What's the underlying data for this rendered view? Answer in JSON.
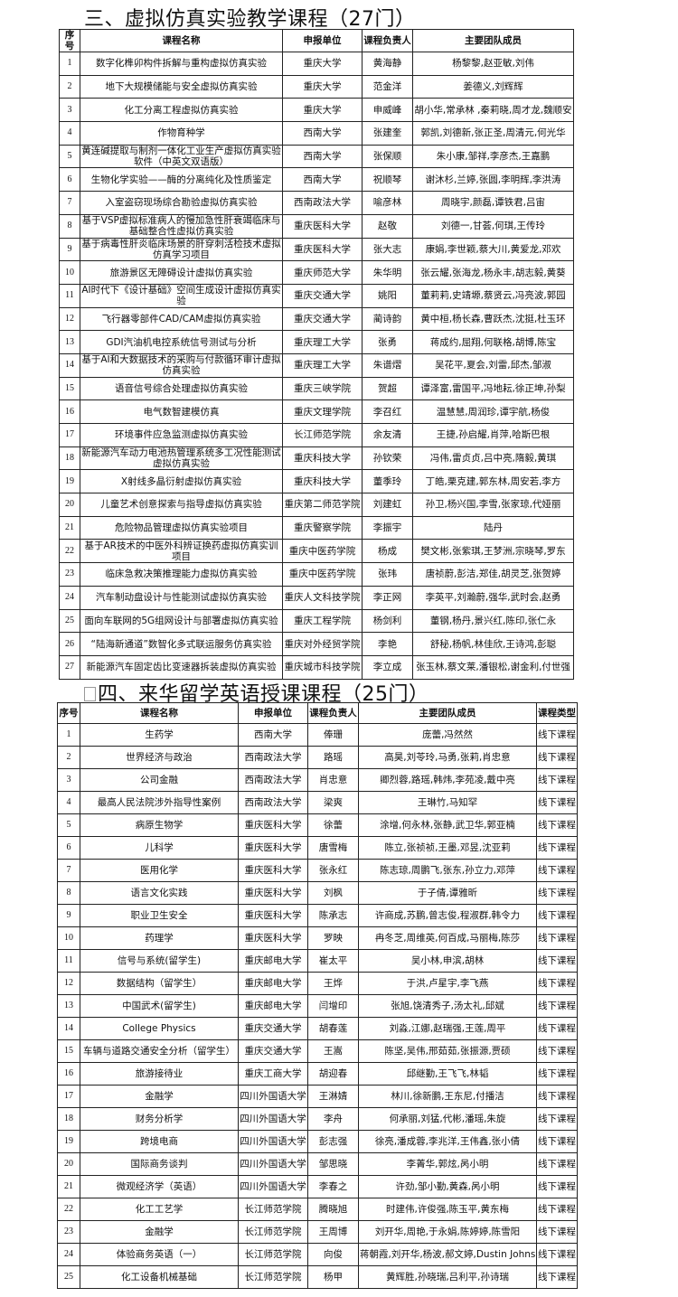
{
  "section3": {
    "title": "三、虚拟仿真实验教学课程（27门）",
    "headers": [
      "序号",
      "课程名称",
      "申报单位",
      "课程负责人",
      "主要团队成员"
    ],
    "rows": [
      [
        "1",
        "数字化榫卯构件拆解与重构虚拟仿真实验",
        "重庆大学",
        "黄海静",
        "杨黎黎,赵亚敏,刘伟"
      ],
      [
        "2",
        "地下大规模储能与安全虚拟仿真实验",
        "重庆大学",
        "范金洋",
        "姜德义,刘辉辉"
      ],
      [
        "3",
        "化工分离工程虚拟仿真实验",
        "重庆大学",
        "申威峰",
        "胡小华,常承林 ,秦莉晓,周才龙,魏顺安"
      ],
      [
        "4",
        "作物育种学",
        "西南大学",
        "张建奎",
        "郭凯,刘德新,张正圣,周清元,何光华"
      ],
      [
        "5",
        "黄连碱提取与制剂一体化工业生产虚拟仿真实验软件（中英文双语版）",
        "西南大学",
        "张保顺",
        "朱小康,邹祥,李彦杰,王嘉鹏"
      ],
      [
        "6",
        "生物化学实验——酶的分离纯化及性质鉴定",
        "西南大学",
        "祝顺琴",
        "谢沐杉,兰婷,张圆,李明辉,李洪涛"
      ],
      [
        "7",
        "入室盗窃现场综合勘验虚拟仿真实验",
        "西南政法大学",
        "喻彦林",
        "周晓宇,颜磊,谭铁君,吕宙"
      ],
      [
        "8",
        "基于VSP虚拟标准病人的慢加急性肝衰竭临床与基础整合性虚拟仿真实验",
        "重庆医科大学",
        "赵敬",
        "刘德一,甘荟,何琪,王传玲"
      ],
      [
        "9",
        "基于病毒性肝炎临床场景的肝穿刺活检技术虚拟仿真学习项目",
        "重庆医科大学",
        "张大志",
        "康娟,李世颖,蔡大川,黄爱龙,邓欢"
      ],
      [
        "10",
        "旅游景区无障碍设计虚拟仿真实验",
        "重庆师范大学",
        "朱华明",
        "张云耀,张海龙,杨永丰,胡志毅,黄葵"
      ],
      [
        "11",
        "AI时代下《设计基础》空间生成设计虚拟仿真实验",
        "重庆交通大学",
        "姚阳",
        "董莉莉,史靖塬,蔡贤云,冯亮波,郭园"
      ],
      [
        "12",
        "飞行器零部件CAD/CAM虚拟仿真实验",
        "重庆交通大学",
        "蔺诗韵",
        "黄中桓,杨长森,曹跃杰,沈挺,杜玉环"
      ],
      [
        "13",
        "GDI汽油机电控系统信号测试与分析",
        "重庆理工大学",
        "张勇",
        "蒋成约,屈翔,何联格,胡博,陈宝"
      ],
      [
        "14",
        "基于AI和大数据技术的采购与付款循环审计虚拟仿真实验",
        "重庆理工大学",
        "朱谱熠",
        "吴花平,夏会,刘雷,邱杰,邹淑"
      ],
      [
        "15",
        "语音信号综合处理虚拟仿真实验",
        "重庆三峡学院",
        "贺超",
        "谭泽富,雷国平,冯地耘,徐正坤,孙梨"
      ],
      [
        "16",
        "电气数智建模仿真",
        "重庆文理学院",
        "李召红",
        "温慧慧,周润珍,谭宇航,杨俊"
      ],
      [
        "17",
        "环境事件应急监测虚拟仿真实验",
        "长江师范学院",
        "余友清",
        "王捷,孙启耀,肖萍,哈斯巴根"
      ],
      [
        "18",
        "新能源汽车动力电池热管理系统多工况性能测试虚拟仿真实验",
        "重庆科技大学",
        "孙钦荣",
        "冯伟,雷贞贞,吕中亮,隋毅,黄琪"
      ],
      [
        "19",
        "X射线多晶衍射虚拟仿真实验",
        "重庆科技大学",
        "董季玲",
        "丁皓,栗克建,郭东林,周安若,李方"
      ],
      [
        "20",
        "儿童艺术创意探索与指导虚拟仿真实验",
        "重庆第二师范学院",
        "刘建虹",
        "孙卫,杨兴国,李雪,张家琼,代娅丽"
      ],
      [
        "21",
        "危险物品管理虚拟仿真实验项目",
        "重庆警察学院",
        "李振宇",
        "陆丹"
      ],
      [
        "22",
        "基于AR技术的中医外科辨证换药虚拟仿真实训项目",
        "重庆中医药学院",
        "杨成",
        "樊文彬,张紫琪,王梦洲,宗晓琴,罗东"
      ],
      [
        "23",
        "临床急救决策推理能力虚拟仿真实验",
        "重庆中医药学院",
        "张玮",
        "唐祯蔚,彭洁,郑佳,胡灵芝,张贺婷"
      ],
      [
        "24",
        "汽车制动盘设计与性能测试虚拟仿真实验",
        "重庆人文科技学院",
        "李正网",
        "李英平,刘瀚蔚,强华,武时会,赵勇"
      ],
      [
        "25",
        "面向车联网的5G组网设计与部署虚拟仿真实验",
        "重庆工程学院",
        "杨剑利",
        "董钢,杨丹,景兴红,陈印,张仁永"
      ],
      [
        "26",
        "“陆海新通道”数智化多式联运服务仿真实验",
        "重庆对外经贸学院",
        "李艳",
        "舒秘,杨帆,林佳欣,王诗鸿,彭聪"
      ],
      [
        "27",
        "新能源汽车固定齿比变速器拆装虚拟仿真实验",
        "重庆城市科技学院",
        "李立成",
        "张玉林,蔡文莱,潘银松,谢金利,付世强"
      ]
    ]
  },
  "section4": {
    "title": "四、来华留学英语授课课程（25门）",
    "headers": [
      "序号",
      "课程名称",
      "申报单位",
      "课程负责人",
      "主要团队成员",
      "课程类型"
    ],
    "rows": [
      [
        "1",
        "生药学",
        "西南大学",
        "俸珊",
        "庞蕾,冯然然",
        "线下课程"
      ],
      [
        "2",
        "世界经济与政治",
        "西南政法大学",
        "路瑶",
        "高昊,刘苓玲,马勇,张莉,肖忠意",
        "线下课程"
      ],
      [
        "3",
        "公司金融",
        "西南政法大学",
        "肖忠意",
        "卿烈蓉,路瑶,韩炜,李苑凌,戴中亮",
        "线下课程"
      ],
      [
        "4",
        "最高人民法院涉外指导性案例",
        "西南政法大学",
        "梁爽",
        "王琳竹,马知罕",
        "线下课程"
      ],
      [
        "5",
        "病原生物学",
        "重庆医科大学",
        "徐蕾",
        "涂增,何永林,张静,武卫华,郭亚楠",
        "线下课程"
      ],
      [
        "6",
        "儿科学",
        "重庆医科大学",
        "唐雪梅",
        "陈立,张祯祯,王墨,邓昱,沈亚莉",
        "线下课程"
      ],
      [
        "7",
        "医用化学",
        "重庆医科大学",
        "张永红",
        "陈志琼,周鹏飞,张东,孙立力,邓萍",
        "线下课程"
      ],
      [
        "8",
        "语言文化实践",
        "重庆医科大学",
        "刘枫",
        "于子倩,谭雅昕",
        "线下课程"
      ],
      [
        "9",
        "职业卫生安全",
        "重庆医科大学",
        "陈承志",
        "许商成,苏鹏,曾志俊,程淑群,韩令力",
        "线下课程"
      ],
      [
        "10",
        "药理学",
        "重庆医科大学",
        "罗映",
        "冉冬芝,周维英,何百成,马丽梅,陈莎",
        "线下课程"
      ],
      [
        "11",
        "信号与系统(留学生)",
        "重庆邮电大学",
        "崔太平",
        "吴小林,申滨,胡林",
        "线下课程"
      ],
      [
        "12",
        "数据结构（留学生）",
        "重庆邮电大学",
        "王烨",
        "于洪,卢星宇,李飞燕",
        "线下课程"
      ],
      [
        "13",
        "中国武术(留学生)",
        "重庆邮电大学",
        "闫增印",
        "张旭,饶清秀子,汤太礼,邱斌",
        "线下课程"
      ],
      [
        "14",
        "College Physics",
        "重庆交通大学",
        "胡春莲",
        "刘淼,江娜,赵瑞强,王莲,周平",
        "线下课程"
      ],
      [
        "15",
        "车辆与道路交通安全分析（留学生）",
        "重庆交通大学",
        "王嵩",
        "陈坚,吴伟,邢茹茹,张振源,贾硕",
        "线下课程"
      ],
      [
        "16",
        "旅游接待业",
        "重庆工商大学",
        "胡迎春",
        "邱继勤,王飞飞,林韬",
        "线下课程"
      ],
      [
        "17",
        "金融学",
        "四川外国语大学",
        "王淋婧",
        "林川,徐新鹏,王东尼,付播洁",
        "线下课程"
      ],
      [
        "18",
        "财务分析学",
        "四川外国语大学",
        "李舟",
        "何承丽,刘猛,代彬,潘瑶,朱旋",
        "线下课程"
      ],
      [
        "19",
        "跨境电商",
        "四川外国语大学",
        "彭志强",
        "徐亮,潘成蓉,李兆洋,王伟鑫,张小倩",
        "线下课程"
      ],
      [
        "20",
        "国际商务谈判",
        "四川外国语大学",
        "邹思晓",
        "李菁华,郭炫,呙小明",
        "线下课程"
      ],
      [
        "21",
        "微观经济学（英语）",
        "四川外国语大学",
        "李春之",
        "许劲,邹小勤,黄森,呙小明",
        "线下课程"
      ],
      [
        "22",
        "化工工艺学",
        "长江师范学院",
        "腾晓旭",
        "时建伟,许俊强,陈玉平,黄东梅",
        "线下课程"
      ],
      [
        "23",
        "金融学",
        "长江师范学院",
        "王周博",
        "刘开华,周艳,于永娟,陈婷婷,陈雪阳",
        "线下课程"
      ],
      [
        "24",
        "体验商务英语（一）",
        "长江师范学院",
        "向俊",
        "蒋朝霞,刘开华,杨波,郝文婷,Dustin Johnson",
        "线下课程"
      ],
      [
        "25",
        "化工设备机械基础",
        "长江师范学院",
        "杨甲",
        "黄辉胜,孙晓瑞,吕利平,孙诗瑞",
        "线下课程"
      ]
    ]
  }
}
